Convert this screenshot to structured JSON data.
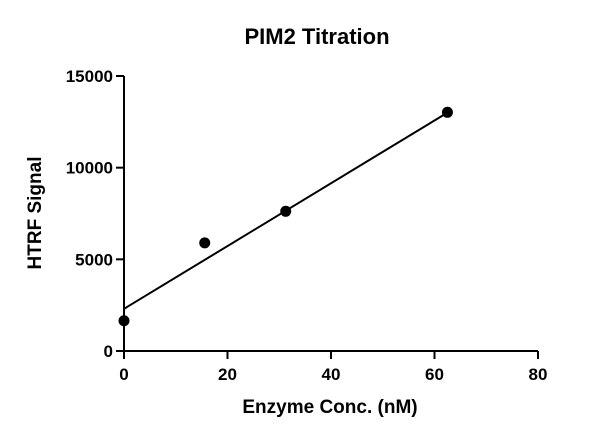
{
  "chart_data": {
    "type": "scatter",
    "title": "PIM2 Titration",
    "xlabel": "Enzyme Conc. (nM)",
    "ylabel": "HTRF Signal",
    "xlim": [
      0,
      80
    ],
    "ylim": [
      0,
      15000
    ],
    "x_ticks": [
      0,
      20,
      40,
      60,
      80
    ],
    "y_ticks": [
      0,
      5000,
      10000,
      15000
    ],
    "grid": false,
    "legend": "none",
    "series": [
      {
        "x": [
          0,
          15.6,
          31.25,
          62.5
        ],
        "y": [
          1650,
          5900,
          7620,
          13020
        ]
      }
    ],
    "fit_line": {
      "type": "linear",
      "x": [
        0,
        62.5
      ],
      "y": [
        2300,
        13000
      ]
    },
    "colors": {
      "points": "#000000",
      "line": "#000000"
    }
  }
}
